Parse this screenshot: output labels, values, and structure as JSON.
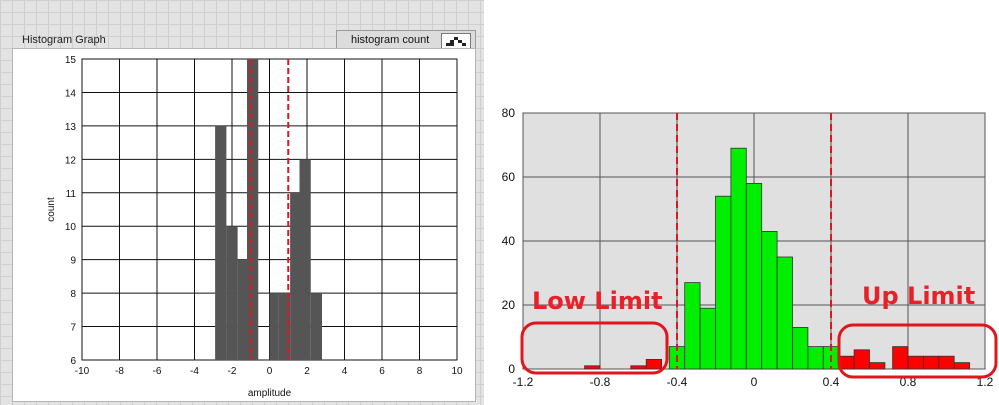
{
  "left_panel": {
    "title": "Histogram Graph",
    "legend_label": "histogram count",
    "legend_icon": "histogram-step-icon"
  },
  "chart_data": [
    {
      "type": "bar",
      "xlabel": "amplitude",
      "ylabel": "count",
      "xlim": [
        -10,
        10
      ],
      "ylim": [
        6,
        15
      ],
      "xticks": [
        "-10",
        "-8",
        "-6",
        "-4",
        "-2",
        "0",
        "2",
        "4",
        "6",
        "8",
        "10"
      ],
      "yticks": [
        "6",
        "7",
        "8",
        "9",
        "10",
        "11",
        "12",
        "13",
        "14",
        "15"
      ],
      "bar_color": "#555555",
      "bins": [
        {
          "x0": -2.9,
          "x1": -2.3,
          "value": 13
        },
        {
          "x0": -2.3,
          "x1": -1.7,
          "value": 10
        },
        {
          "x0": -1.7,
          "x1": -1.2,
          "value": 9
        },
        {
          "x0": -1.2,
          "x1": -0.6,
          "value": 15
        },
        {
          "x0": 0.0,
          "x1": 0.5,
          "value": 8
        },
        {
          "x0": 0.5,
          "x1": 1.1,
          "value": 8
        },
        {
          "x0": 1.1,
          "x1": 1.6,
          "value": 11
        },
        {
          "x0": 1.6,
          "x1": 2.2,
          "value": 12
        },
        {
          "x0": 2.2,
          "x1": 2.8,
          "value": 8
        }
      ],
      "limit_lines": [
        -1.0,
        1.0
      ],
      "limit_color": "#e0161e",
      "grid": true
    },
    {
      "type": "bar",
      "xlim": [
        -1.2,
        1.2
      ],
      "ylim": [
        0,
        80
      ],
      "xticks": [
        "-1.2",
        "-0.8",
        "-0.4",
        "0",
        "0.4",
        "0.8",
        "1.2"
      ],
      "yticks": [
        "0",
        "20",
        "40",
        "60",
        "80"
      ],
      "bin_width": 0.08,
      "bins": [
        {
          "x0": -1.12,
          "value": 0,
          "color": "#ff0000"
        },
        {
          "x0": -1.04,
          "value": 0,
          "color": "#ff0000"
        },
        {
          "x0": -0.96,
          "value": 0,
          "color": "#ff0000"
        },
        {
          "x0": -0.88,
          "value": 1,
          "color": "#ff0000"
        },
        {
          "x0": -0.8,
          "value": 0,
          "color": "#ff0000"
        },
        {
          "x0": -0.72,
          "value": 0,
          "color": "#ff0000"
        },
        {
          "x0": -0.64,
          "value": 1,
          "color": "#ff0000"
        },
        {
          "x0": -0.56,
          "value": 3,
          "color": "#ff0000"
        },
        {
          "x0": -0.44,
          "value": 7,
          "color": "#00ee00"
        },
        {
          "x0": -0.36,
          "value": 27,
          "color": "#00ee00"
        },
        {
          "x0": -0.28,
          "value": 19,
          "color": "#00ee00"
        },
        {
          "x0": -0.2,
          "value": 54,
          "color": "#00ee00"
        },
        {
          "x0": -0.12,
          "value": 69,
          "color": "#00ee00"
        },
        {
          "x0": -0.04,
          "value": 58,
          "color": "#00ee00"
        },
        {
          "x0": 0.04,
          "value": 43,
          "color": "#00ee00"
        },
        {
          "x0": 0.12,
          "value": 35,
          "color": "#00ee00"
        },
        {
          "x0": 0.2,
          "value": 13,
          "color": "#00ee00"
        },
        {
          "x0": 0.28,
          "value": 7,
          "color": "#00ee00"
        },
        {
          "x0": 0.36,
          "value": 7,
          "color": "#00ee00"
        },
        {
          "x0": 0.44,
          "value": 4,
          "color": "#ff0000"
        },
        {
          "x0": 0.52,
          "value": 6,
          "color": "#ff0000"
        },
        {
          "x0": 0.6,
          "value": 2,
          "color": "#ff0000"
        },
        {
          "x0": 0.72,
          "value": 7,
          "color": "#ff0000"
        },
        {
          "x0": 0.8,
          "value": 4,
          "color": "#ff0000"
        },
        {
          "x0": 0.88,
          "value": 4,
          "color": "#ff0000"
        },
        {
          "x0": 0.96,
          "value": 4,
          "color": "#ff0000"
        },
        {
          "x0": 1.04,
          "value": 2,
          "color": "#ff0000"
        }
      ],
      "limit_lines": [
        -0.4,
        0.4
      ],
      "limit_color": "#e0161e",
      "background": "#e0e0e0",
      "grid": true,
      "annotations": {
        "low": "Low Limit",
        "up": "Up Limit"
      }
    }
  ]
}
